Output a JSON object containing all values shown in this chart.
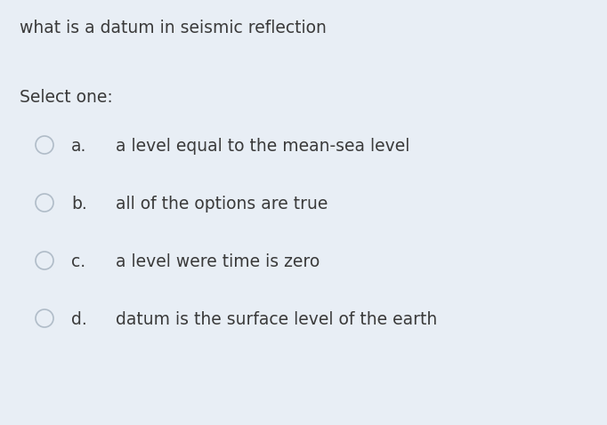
{
  "background_color": "#e8eef5",
  "title": "what is a datum in seismic reflection",
  "select_label": "Select one:",
  "options": [
    {
      "letter": "a.",
      "text": "a level equal to the mean-sea level"
    },
    {
      "letter": "b.",
      "text": "all of the options are true"
    },
    {
      "letter": "c.",
      "text": "a level were time is zero"
    },
    {
      "letter": "d.",
      "text": "datum is the surface level of the earth"
    }
  ],
  "title_fontsize": 13.5,
  "select_fontsize": 13.5,
  "option_fontsize": 13.5,
  "text_color": "#3a3a3a",
  "circle_edge_color": "#b0bcc8",
  "fig_width": 6.82,
  "fig_height": 4.78,
  "dpi": 100
}
